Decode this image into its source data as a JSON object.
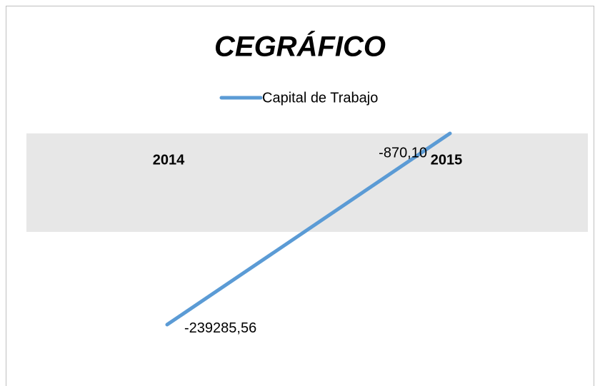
{
  "chart_data": {
    "type": "line",
    "title": "CEGRÁFICO",
    "categories": [
      "2014",
      "2015"
    ],
    "series": [
      {
        "name": "Capital de Trabajo",
        "color": "#5b9bd5",
        "values": [
          -239285.56,
          -870.1
        ],
        "value_labels": [
          "-239285,56",
          "-870,10"
        ]
      }
    ],
    "ylim": [
      -250000,
      0
    ]
  }
}
